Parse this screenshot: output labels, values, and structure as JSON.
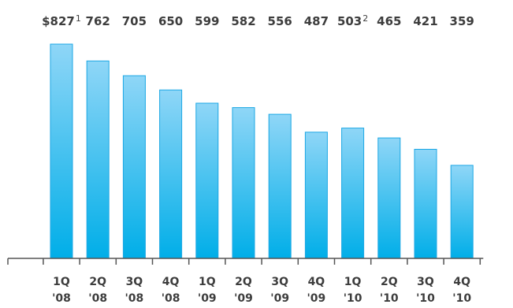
{
  "chart_data": {
    "type": "bar",
    "categories": [
      [
        "1Q",
        "'08"
      ],
      [
        "2Q",
        "'08"
      ],
      [
        "3Q",
        "'08"
      ],
      [
        "4Q",
        "'08"
      ],
      [
        "1Q",
        "'09"
      ],
      [
        "2Q",
        "'09"
      ],
      [
        "3Q",
        "'09"
      ],
      [
        "4Q",
        "'09"
      ],
      [
        "1Q",
        "'10"
      ],
      [
        "2Q",
        "'10"
      ],
      [
        "3Q",
        "'10"
      ],
      [
        "4Q",
        "'10"
      ]
    ],
    "values": [
      827,
      762,
      705,
      650,
      599,
      582,
      556,
      487,
      503,
      465,
      421,
      359
    ],
    "value_labels": [
      {
        "text": "$827",
        "footnote": "1"
      },
      {
        "text": "762",
        "footnote": ""
      },
      {
        "text": "705",
        "footnote": ""
      },
      {
        "text": "650",
        "footnote": ""
      },
      {
        "text": "599",
        "footnote": ""
      },
      {
        "text": "582",
        "footnote": ""
      },
      {
        "text": "556",
        "footnote": ""
      },
      {
        "text": "487",
        "footnote": ""
      },
      {
        "text": "503",
        "footnote": "2"
      },
      {
        "text": "465",
        "footnote": ""
      },
      {
        "text": "421",
        "footnote": ""
      },
      {
        "text": "359",
        "footnote": ""
      }
    ],
    "title": "",
    "xlabel": "",
    "ylabel": "",
    "ylim": [
      0,
      827
    ],
    "grid": false,
    "colors": {
      "bar_top": "#8fd6f7",
      "bar_bottom": "#00aee8",
      "bar_edge": "#1ca7e4",
      "axis": "#555555",
      "text": "#3d3d3d"
    }
  }
}
